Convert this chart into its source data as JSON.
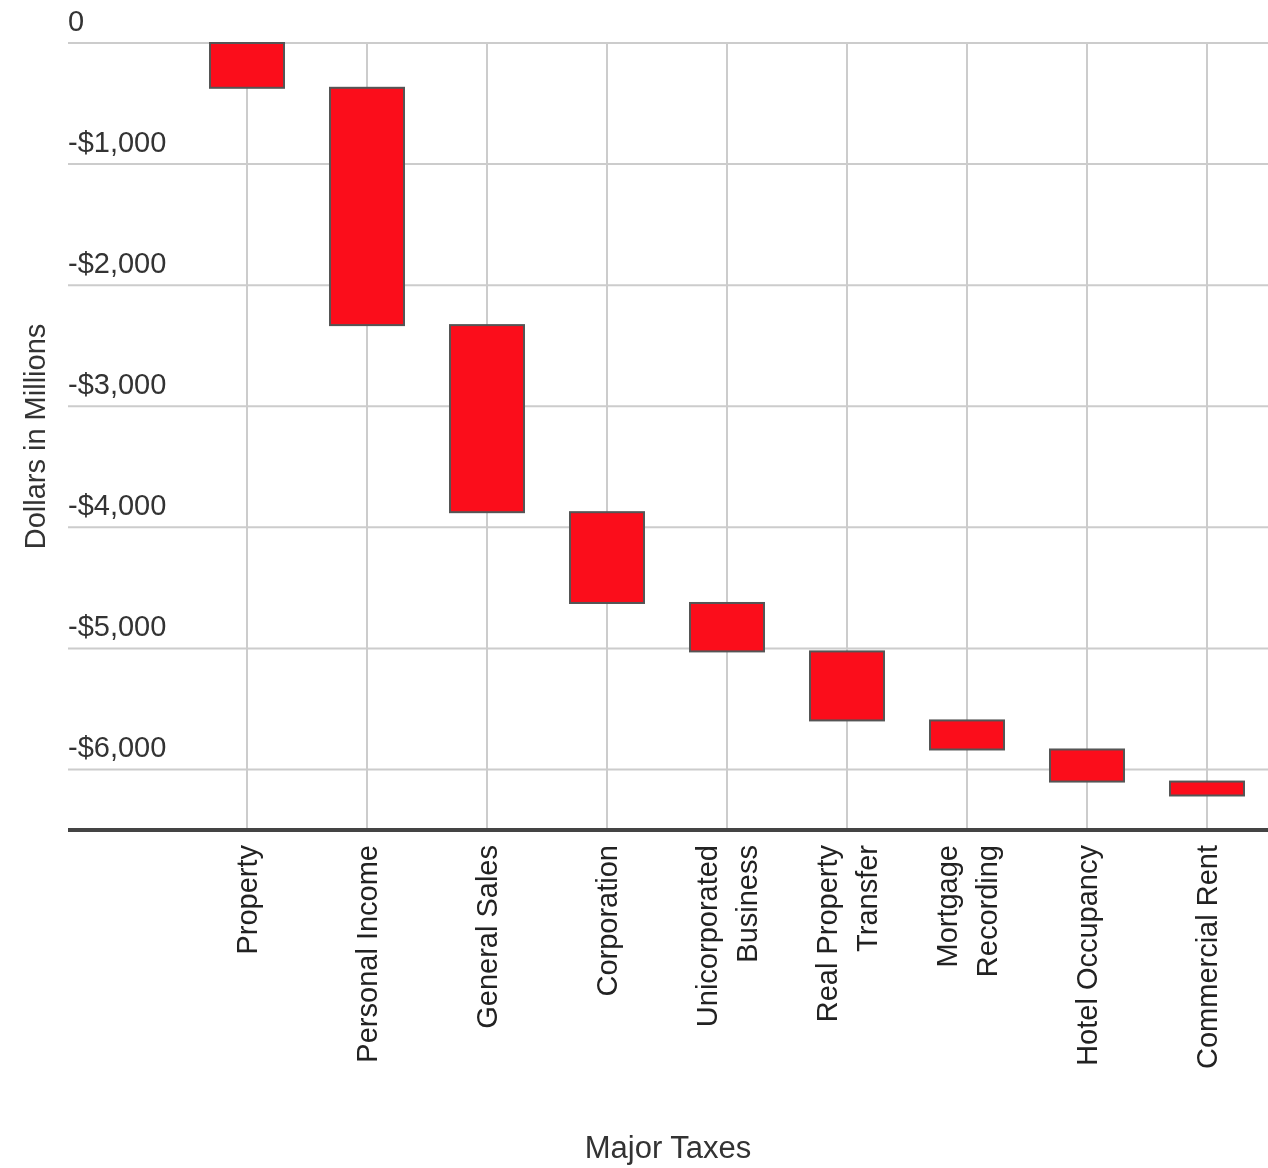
{
  "chart_data": {
    "type": "bar",
    "xlabel": "Major Taxes",
    "ylabel": "Dollars in Millions",
    "categories": [
      "Property",
      "Personal Income",
      "General Sales",
      "Corporation",
      "Unicorporated Business",
      "Real Property Transfer",
      "Mortgage Recording",
      "Hotel Occupancy",
      "Commercial Rent"
    ],
    "values": [
      -370,
      -1960,
      -1545,
      -750,
      -400,
      -570,
      -240,
      -265,
      -115
    ],
    "base": [
      0,
      -370,
      -2330,
      -3875,
      -4625,
      -5025,
      -5595,
      -5835,
      -6100
    ],
    "color": "#fb0d1b",
    "ylim": [
      -6500,
      0
    ],
    "yticks": [
      0,
      {
        "value": -1000,
        "label": "-$1,000"
      },
      {
        "value": -2000,
        "label": "-$2,000"
      },
      {
        "value": -3000,
        "label": "-$3,000"
      },
      {
        "value": -4000,
        "label": "-$4,000"
      },
      {
        "value": -5000,
        "label": "-$5,000"
      },
      {
        "value": -6000,
        "label": "-$6,000"
      }
    ],
    "grid": true
  }
}
